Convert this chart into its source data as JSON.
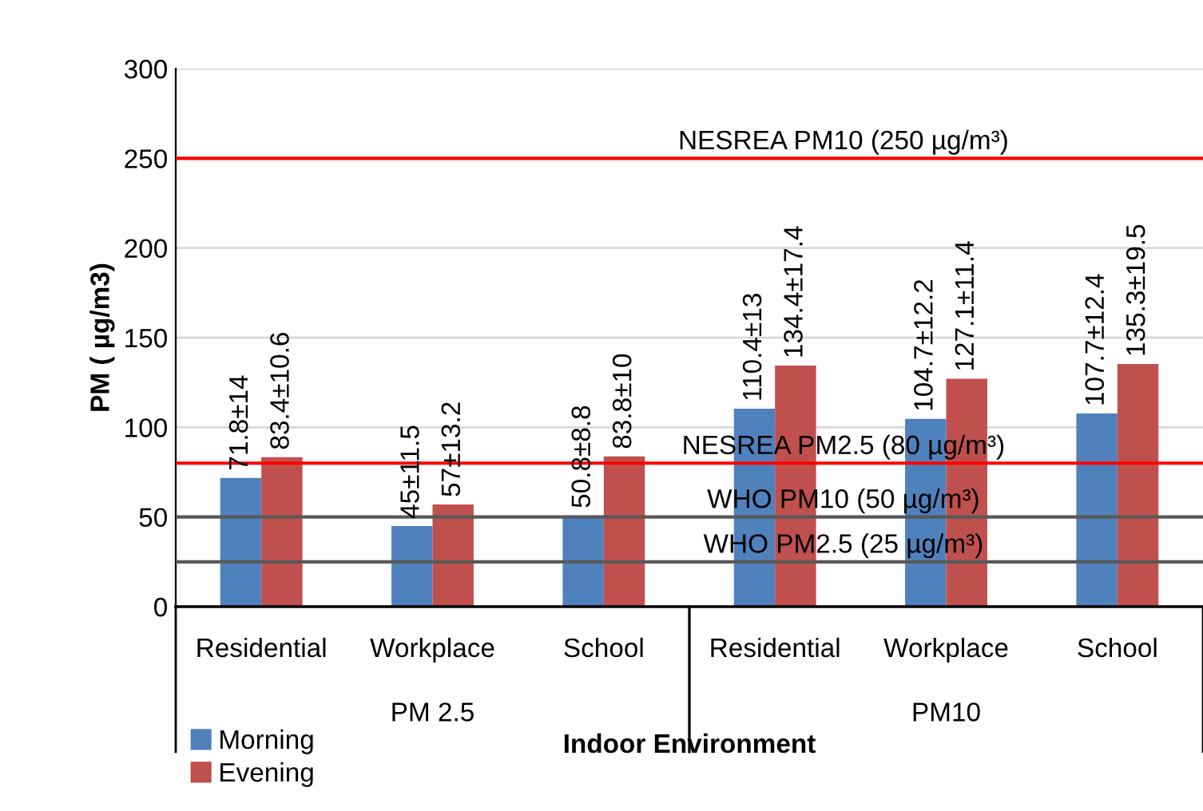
{
  "chart_data": {
    "type": "bar",
    "xlabel": "Indoor Environment",
    "ylabel": "PM ( µg/m3)",
    "categories": [
      "Residential",
      "Workplace",
      "School",
      "Residential",
      "Workplace",
      "School"
    ],
    "series": [
      {
        "name": "Morning",
        "color": "#4f81bd",
        "values": [
          71.8,
          45,
          50.8,
          110.4,
          104.7,
          107.7
        ],
        "value_labels": [
          "71.8±14",
          "45±11.5",
          "50.8±8.8",
          "110.4±13",
          "104.7±12.2",
          "107.7±12.4"
        ]
      },
      {
        "name": "Evening",
        "color": "#c0504d",
        "values": [
          83.4,
          57,
          83.8,
          134.4,
          127.1,
          135.3
        ],
        "value_labels": [
          "83.4±10.6",
          "57±13.2",
          "83.8±10",
          "134.4±17.4",
          "127.1±11.4",
          "135.3±19.5"
        ]
      }
    ],
    "annotations": [
      "PM 2.5",
      "PM10"
    ],
    "ylim": [
      0,
      300
    ],
    "yticks": [
      0,
      50,
      100,
      150,
      200,
      250,
      300
    ],
    "grid": "y",
    "legend": "bottom left",
    "ref_lines": [
      {
        "axis": "y",
        "value": 250,
        "label": "NESREA PM10 (250 µg/m³)",
        "color": "#ff0000"
      },
      {
        "axis": "y",
        "value": 80,
        "label": "NESREA PM2.5 (80 µg/m³)",
        "color": "#ff0000"
      },
      {
        "axis": "y",
        "value": 50,
        "label": "WHO PM10 (50 µg/m³)",
        "color": "#595959"
      },
      {
        "axis": "y",
        "value": 25,
        "label": "WHO PM2.5 (25 µg/m³)",
        "color": "#595959"
      }
    ]
  }
}
